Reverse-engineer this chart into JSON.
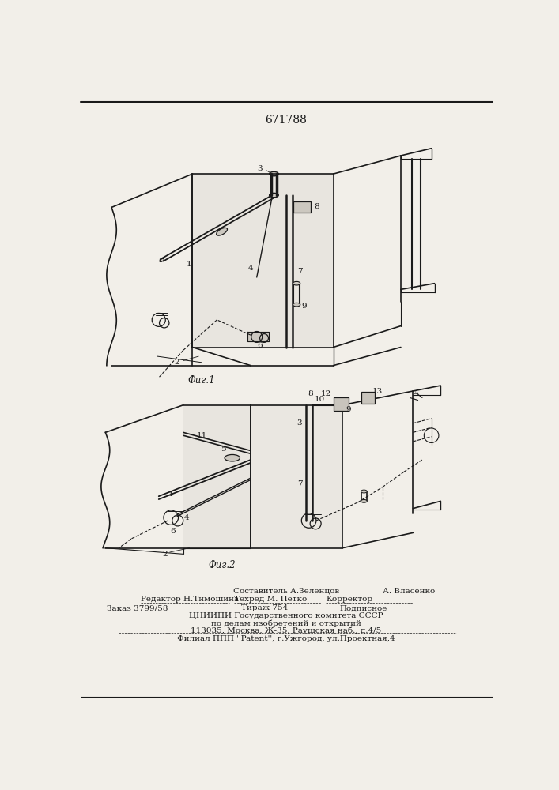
{
  "patent_number": "671788",
  "bg_color": "#f2efe9",
  "line_color": "#1a1a1a",
  "fig1_label": "Фиг.1",
  "fig2_label": "Фиг.2",
  "footer_sestavitel": "Составитель А.Зеленцов",
  "footer_redaktor": "Редактор Н.Тимошина",
  "footer_tehred": "Техред М. Петко",
  "footer_korrektor": "Корректор",
  "footer_vlasenko": "А. Власенко",
  "footer_zakaz": "Заказ 3799/58",
  "footer_tirazh": "Тираж 754",
  "footer_podpisnoe": "Подписное",
  "footer_cniip": "ЦНИИПИ Государственного комитета СССР",
  "footer_po_delam": "по делам изобретений и открытий",
  "footer_address": "113035, Москва, Ж-35, Раушская наб., д.4/5",
  "footer_filial": "Филиал ППП ''Patent'', г.Ужгород, ул.Проектная,4",
  "font_size_patent": 10,
  "font_size_fig": 8.5,
  "font_size_footer": 7.5,
  "font_size_label": 7.5
}
